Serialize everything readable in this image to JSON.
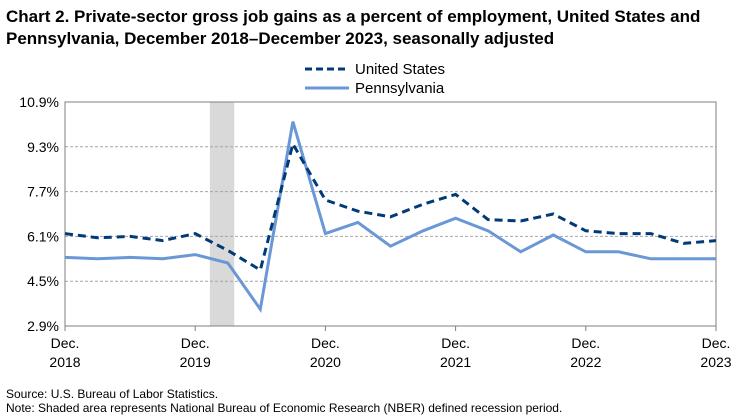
{
  "title": "Chart 2. Private-sector gross job gains as a percent of employment, United States and Pennsylvania, December 2018–December 2023, seasonally adjusted",
  "source": "Source: U.S. Bureau of Labor Statistics.",
  "note": "Note: Shaded area represents National Bureau of Economic Research (NBER) defined  recession period.",
  "colors": {
    "us": "#003b77",
    "pa": "#6a98d6",
    "recession": "#d9d9d9",
    "grid": "#a6a6a6",
    "axis": "#7f7f7f"
  },
  "chart_data": {
    "type": "line",
    "x": [
      "Dec. 2018",
      "Mar. 2019",
      "Jun. 2019",
      "Sep. 2019",
      "Dec. 2019",
      "Mar. 2020",
      "Jun. 2020",
      "Sep. 2020",
      "Dec. 2020",
      "Mar. 2021",
      "Jun. 2021",
      "Sep. 2021",
      "Dec. 2021",
      "Mar. 2022",
      "Jun. 2022",
      "Sep. 2022",
      "Dec. 2022",
      "Mar. 2023",
      "Jun. 2023",
      "Sep. 2023",
      "Dec. 2023"
    ],
    "x_tick_labels": [
      {
        "index": 0,
        "line1": "Dec.",
        "line2": "2018"
      },
      {
        "index": 4,
        "line1": "Dec.",
        "line2": "2019"
      },
      {
        "index": 8,
        "line1": "Dec.",
        "line2": "2020"
      },
      {
        "index": 12,
        "line1": "Dec.",
        "line2": "2021"
      },
      {
        "index": 16,
        "line1": "Dec.",
        "line2": "2022"
      },
      {
        "index": 20,
        "line1": "Dec.",
        "line2": "2023"
      }
    ],
    "y_ticks": [
      "2.9%",
      "4.5%",
      "6.1%",
      "7.7%",
      "9.3%",
      "10.9%"
    ],
    "ylim": [
      2.9,
      10.9
    ],
    "recession": {
      "start": "Dec. 2019",
      "end": "Mar. 2020"
    },
    "series": [
      {
        "name": "United States",
        "style": "dashed",
        "values": [
          6.2,
          6.05,
          6.1,
          5.95,
          6.2,
          5.6,
          4.9,
          9.4,
          7.4,
          7.0,
          6.8,
          7.25,
          7.6,
          6.7,
          6.65,
          6.9,
          6.3,
          6.2,
          6.2,
          5.85,
          5.95
        ]
      },
      {
        "name": "Pennsylvania",
        "style": "solid",
        "values": [
          5.35,
          5.3,
          5.35,
          5.3,
          5.45,
          5.15,
          3.5,
          10.2,
          6.2,
          6.6,
          5.75,
          6.3,
          6.75,
          6.3,
          5.55,
          6.15,
          5.55,
          5.55,
          5.3,
          5.3,
          5.3
        ]
      }
    ],
    "legend_position": "top-center",
    "grid": true
  }
}
